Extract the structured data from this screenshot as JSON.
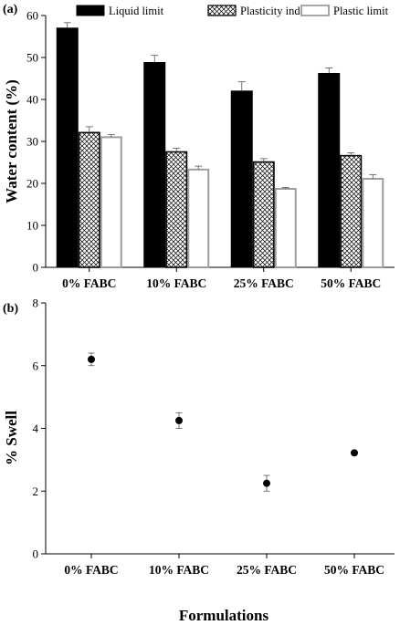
{
  "chart_data": [
    {
      "panel_label": "(a)",
      "type": "bar",
      "categories": [
        "0% FABC",
        "10% FABC",
        "25% FABC",
        "50% FABC"
      ],
      "series": [
        {
          "name": "Liquid limit",
          "values": [
            57,
            48.8,
            42,
            46.2
          ],
          "errors": [
            1.3,
            1.7,
            2.2,
            1.3
          ],
          "color": "#000000",
          "fill": "solid"
        },
        {
          "name": "Plasticity index",
          "values": [
            32.1,
            27.5,
            25.1,
            26.6
          ],
          "errors": [
            1.4,
            0.9,
            0.8,
            0.7
          ],
          "color": "#000000",
          "fill": "crosshatch"
        },
        {
          "name": "Plastic limit",
          "values": [
            31,
            23.3,
            18.7,
            21.1
          ],
          "errors": [
            0.6,
            0.8,
            0.3,
            1.0
          ],
          "color": "#9e9e9e",
          "fill": "white"
        }
      ],
      "ylabel": "Water content (%)",
      "xlabel": "",
      "ylim": [
        0,
        60
      ],
      "yticks": [
        0,
        10,
        20,
        30,
        40,
        50,
        60
      ],
      "legend": "top"
    },
    {
      "panel_label": "(b)",
      "type": "scatter",
      "categories": [
        "0% FABC",
        "10% FABC",
        "25% FABC",
        "50% FABC"
      ],
      "values": [
        6.2,
        4.25,
        2.25,
        3.22
      ],
      "errors": [
        0.2,
        0.25,
        0.25,
        0
      ],
      "ylabel": "% Swell",
      "xlabel": "Formulations",
      "ylim": [
        0,
        8
      ],
      "yticks": [
        0,
        2,
        4,
        6,
        8
      ]
    }
  ]
}
